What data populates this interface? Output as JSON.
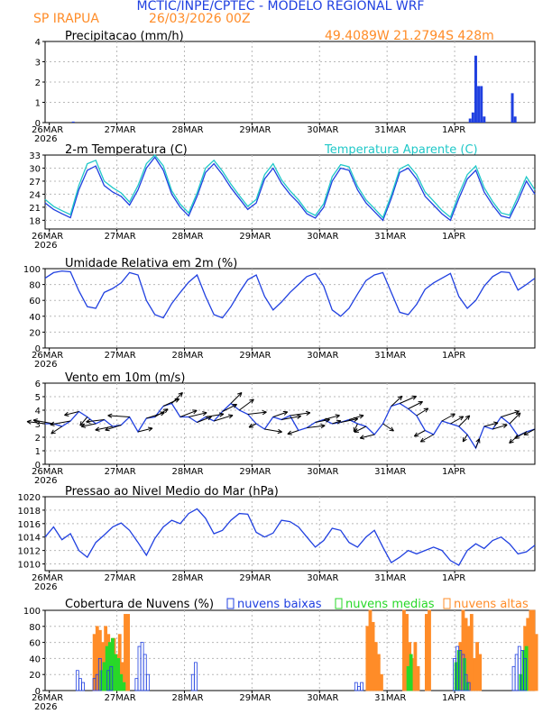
{
  "header": {
    "title": "MCTIC/INPE/CPTEC - MODELO REGIONAL WRF",
    "station": "SP IRAPUA",
    "run": "26/03/2026 00Z",
    "coords": "49.4089W 21.2794S 428m"
  },
  "colors": {
    "blue": "#2040e0",
    "cyan": "#20c8c8",
    "orange": "#ff8c28",
    "green": "#28d828",
    "title_blue": "#2040e0",
    "header_orange": "#ff8c28"
  },
  "day_labels": [
    "26MAR",
    "27MAR",
    "28MAR",
    "29MAR",
    "30MAR",
    "31MAR",
    "1APR"
  ],
  "year_label": "2026",
  "chart_data": [
    {
      "type": "bar",
      "title": "Precipitacao (mm/h)",
      "ylim": [
        0,
        4
      ],
      "yticks": [
        "0",
        "1",
        "2",
        "3",
        "4"
      ],
      "x_hours": [
        10,
        151,
        152,
        153,
        154,
        155,
        156,
        166,
        167
      ],
      "values": [
        0.05,
        0.2,
        0.5,
        3.3,
        1.8,
        1.8,
        0.3,
        1.45,
        0.3
      ]
    },
    {
      "type": "line",
      "title": "2-m Temperatura (C)",
      "legend": "Temperatura Aparente (C)",
      "ylim": [
        16,
        33
      ],
      "yticks": [
        "18",
        "21",
        "24",
        "27",
        "30",
        "33"
      ],
      "series": [
        {
          "name": "Temperatura",
          "color": "#2040e0",
          "x": [
            0,
            3,
            6,
            9,
            12,
            15,
            18,
            21,
            24,
            27,
            30,
            33,
            36,
            39,
            42,
            45,
            48,
            51,
            54,
            57,
            60,
            63,
            66,
            69,
            72,
            75,
            78,
            81,
            84,
            87,
            90,
            93,
            96,
            99,
            102,
            105,
            108,
            111,
            114,
            117,
            120,
            123,
            126,
            129,
            132,
            135,
            138,
            141,
            144,
            147,
            150,
            153,
            156,
            159,
            162,
            165,
            168,
            171,
            174
          ],
          "values": [
            22,
            20.5,
            19.5,
            18.6,
            25,
            29.5,
            30.5,
            26,
            24.5,
            23.5,
            21.5,
            25,
            30,
            32.5,
            29.5,
            24,
            21,
            19,
            23.5,
            29,
            31,
            28.5,
            25.5,
            23,
            20.5,
            22,
            27.5,
            30,
            26.5,
            24,
            22,
            19.5,
            18.5,
            21,
            27,
            30,
            29.5,
            25,
            22,
            20,
            18,
            23,
            29,
            30,
            27.5,
            23.5,
            21.5,
            19.5,
            18,
            23,
            27.5,
            29.5,
            24.5,
            21.5,
            19,
            18.5,
            22.5,
            27,
            24
          ]
        },
        {
          "name": "Temperatura Aparente",
          "color": "#20c8c8",
          "x": [
            0,
            3,
            6,
            9,
            12,
            15,
            18,
            21,
            24,
            27,
            30,
            33,
            36,
            39,
            42,
            45,
            48,
            51,
            54,
            57,
            60,
            63,
            66,
            69,
            72,
            75,
            78,
            81,
            84,
            87,
            90,
            93,
            96,
            99,
            102,
            105,
            108,
            111,
            114,
            117,
            120,
            123,
            126,
            129,
            132,
            135,
            138,
            141,
            144,
            147,
            150,
            153,
            156,
            159,
            162,
            165,
            168,
            171,
            174
          ],
          "values": [
            22.8,
            21.2,
            20.2,
            19.3,
            26,
            31,
            31.8,
            27,
            25.5,
            24.3,
            22.2,
            26,
            31,
            33,
            30.5,
            24.8,
            21.7,
            19.7,
            24.3,
            30,
            31.8,
            29.3,
            26.3,
            23.7,
            21.2,
            22.8,
            28.5,
            31,
            27.3,
            24.8,
            22.7,
            20.1,
            19.1,
            21.8,
            28,
            30.8,
            30.3,
            25.8,
            22.7,
            20.7,
            18.6,
            23.8,
            29.8,
            30.8,
            28.5,
            24.5,
            22.4,
            20.3,
            18.7,
            24,
            28.5,
            30.5,
            25.5,
            22.3,
            19.7,
            19.2,
            23.5,
            28,
            25
          ]
        }
      ]
    },
    {
      "type": "line",
      "title": "Umidade Relativa em 2m (%)",
      "ylim": [
        0,
        100
      ],
      "yticks": [
        "0",
        "20",
        "40",
        "60",
        "80",
        "100"
      ],
      "series": [
        {
          "name": "Umidade",
          "color": "#2040e0",
          "x": [
            0,
            3,
            6,
            9,
            12,
            15,
            18,
            21,
            24,
            27,
            30,
            33,
            36,
            39,
            42,
            45,
            48,
            51,
            54,
            57,
            60,
            63,
            66,
            69,
            72,
            75,
            78,
            81,
            84,
            87,
            90,
            93,
            96,
            99,
            102,
            105,
            108,
            111,
            114,
            117,
            120,
            123,
            126,
            129,
            132,
            135,
            138,
            141,
            144,
            147,
            150,
            153,
            156,
            159,
            162,
            165,
            168,
            171,
            174
          ],
          "values": [
            88,
            95,
            97,
            96,
            72,
            52,
            50,
            70,
            75,
            82,
            95,
            92,
            60,
            42,
            38,
            56,
            70,
            83,
            92,
            65,
            42,
            38,
            52,
            70,
            86,
            92,
            65,
            48,
            58,
            70,
            80,
            90,
            94,
            78,
            48,
            40,
            50,
            68,
            85,
            92,
            95,
            70,
            45,
            42,
            55,
            74,
            82,
            88,
            94,
            65,
            50,
            60,
            78,
            90,
            96,
            95,
            73,
            80,
            88
          ]
        }
      ]
    },
    {
      "type": "line",
      "title": "Vento em 10m (m/s)",
      "ylim": [
        0,
        6
      ],
      "yticks": [
        "0",
        "1",
        "2",
        "3",
        "4",
        "5",
        "6"
      ],
      "series": [
        {
          "name": "Vento",
          "color": "#2040e0",
          "x": [
            0,
            3,
            6,
            9,
            12,
            15,
            18,
            21,
            24,
            27,
            30,
            33,
            36,
            39,
            42,
            45,
            48,
            51,
            54,
            57,
            60,
            63,
            66,
            69,
            72,
            75,
            78,
            81,
            84,
            87,
            90,
            93,
            96,
            99,
            102,
            105,
            108,
            111,
            114,
            117,
            120,
            123,
            126,
            129,
            132,
            135,
            138,
            141,
            144,
            147,
            150,
            153,
            156,
            159,
            162,
            165,
            168,
            171,
            174
          ],
          "values": [
            3,
            3,
            2.8,
            3.2,
            3.9,
            3.5,
            3,
            3.3,
            2.8,
            2.9,
            3.5,
            2.4,
            3.4,
            3.5,
            4.3,
            4.5,
            3.5,
            3.5,
            3.1,
            3.5,
            3.2,
            3.9,
            4.5,
            4.0,
            3.7,
            3.0,
            2.6,
            3.5,
            3.3,
            3.6,
            2.5,
            2.7,
            3.1,
            3.3,
            3.0,
            3.1,
            3.3,
            3.0,
            2.8,
            2.2,
            3.0,
            4.3,
            4.5,
            4.1,
            3.6,
            2.5,
            2.2,
            3.2,
            3.0,
            2.8,
            2.2,
            1.2,
            2.8,
            2.6,
            3.5,
            3.0,
            2.1,
            2.4,
            2.6
          ]
        }
      ],
      "arrows_u": [
        -2.5,
        -2.8,
        -1.5,
        -2.8,
        -2.0,
        -1.0,
        -2.0,
        -2.5,
        -2.4,
        -2.2,
        -3.0,
        2.0,
        2.5,
        1.8,
        2.2,
        1.5,
        2.3,
        2.5,
        2.0,
        2.5,
        2.6,
        2.0,
        1.5,
        2.0,
        2.6,
        -1.0,
        2.4,
        2.0,
        2.7,
        2.8,
        -1.5,
        2.5,
        2.0,
        2.2,
        1.2,
        2.4,
        2.0,
        -0.5,
        -1.6,
        -2.0,
        1.5,
        1.5,
        2.3,
        2.0,
        1.6,
        -1.5,
        -1.8,
        1.8,
        1.8,
        1.5,
        -0.6,
        0.5,
        1.9,
        2.0,
        2.5,
        1.5,
        -1.2,
        -1.6,
        -1.5
      ],
      "arrows_v": [
        0.3,
        0.5,
        -1.0,
        -0.5,
        -0.5,
        -1.2,
        -0.4,
        -0.3,
        -0.5,
        -0.7,
        0.2,
        0.5,
        0.8,
        1.1,
        1.0,
        1.5,
        0.9,
        0.6,
        0.8,
        0.4,
        0.8,
        1.0,
        1.5,
        1.5,
        0.3,
        -0.5,
        -0.4,
        0.7,
        0.5,
        0.4,
        -0.5,
        0.3,
        0.4,
        0.6,
        0.4,
        0.5,
        0.6,
        -1.1,
        -0.8,
        -0.5,
        -1.0,
        1.4,
        1.0,
        1.0,
        1.0,
        -0.8,
        -1.0,
        1.0,
        1.0,
        1.5,
        -1.0,
        1.3,
        0.5,
        0.6,
        0.8,
        1.5,
        -1.0,
        -0.9,
        -0.8
      ]
    },
    {
      "type": "line",
      "title": "Pressao ao Nivel Medio do Mar (hPa)",
      "ylim": [
        1009,
        1020
      ],
      "yticks": [
        "1010",
        "1012",
        "1014",
        "1016",
        "1018",
        "1020"
      ],
      "series": [
        {
          "name": "Pressao",
          "color": "#2040e0",
          "x": [
            0,
            3,
            6,
            9,
            12,
            15,
            18,
            21,
            24,
            27,
            30,
            33,
            36,
            39,
            42,
            45,
            48,
            51,
            54,
            57,
            60,
            63,
            66,
            69,
            72,
            75,
            78,
            81,
            84,
            87,
            90,
            93,
            96,
            99,
            102,
            105,
            108,
            111,
            114,
            117,
            120,
            123,
            126,
            129,
            132,
            135,
            138,
            141,
            144,
            147,
            150,
            153,
            156,
            159,
            162,
            165,
            168,
            171,
            174
          ],
          "values": [
            1014,
            1015.5,
            1013.6,
            1014.5,
            1012.0,
            1011.0,
            1013.2,
            1014.3,
            1015.5,
            1016.1,
            1015.0,
            1013.2,
            1011.3,
            1013.8,
            1015.5,
            1016.5,
            1016.0,
            1017.5,
            1018.2,
            1016.8,
            1014.5,
            1015.0,
            1016.5,
            1017.5,
            1017.4,
            1014.7,
            1014.0,
            1014.6,
            1016.5,
            1016.3,
            1015.5,
            1014.0,
            1012.5,
            1013.5,
            1015.3,
            1015.0,
            1013.2,
            1012.5,
            1014.0,
            1015.0,
            1012.5,
            1010.2,
            1011.0,
            1012.0,
            1011.5,
            1012.0,
            1012.5,
            1012.0,
            1010.5,
            1009.8,
            1012.0,
            1013.0,
            1012.3,
            1013.5,
            1014.0,
            1013.0,
            1011.5,
            1011.8,
            1012.8
          ]
        }
      ]
    },
    {
      "type": "bar",
      "title": "Cobertura de Nuvens (%)",
      "ylim": [
        0,
        100
      ],
      "yticks": [
        "0",
        "20",
        "40",
        "60",
        "80",
        "100"
      ],
      "legend": [
        "nuvens baixas",
        "nuvens medias",
        "nuvens altas"
      ],
      "series": [
        {
          "name": "nuvens baixas",
          "color": "#2040e0",
          "x": [
            12,
            13,
            14,
            18,
            19,
            20,
            23,
            24,
            33,
            34,
            35,
            36,
            37,
            53,
            54,
            111,
            112,
            113,
            146,
            147,
            148,
            149,
            150,
            151,
            167,
            168,
            169,
            170,
            171
          ],
          "values": [
            25,
            15,
            10,
            15,
            20,
            40,
            25,
            30,
            15,
            55,
            60,
            45,
            20,
            20,
            35,
            10,
            5,
            10,
            40,
            55,
            50,
            45,
            20,
            10,
            30,
            45,
            55,
            50,
            40
          ]
        },
        {
          "name": "nuvens medias",
          "color": "#28d828",
          "x": [
            20,
            21,
            22,
            23,
            24,
            25,
            26,
            27,
            28,
            129,
            130,
            146,
            147,
            149,
            150,
            169,
            170,
            171
          ],
          "values": [
            25,
            35,
            55,
            60,
            65,
            45,
            40,
            20,
            10,
            30,
            45,
            35,
            50,
            40,
            10,
            20,
            50,
            55
          ]
        },
        {
          "name": "nuvens altas",
          "color": "#ff8c28",
          "x": [
            17,
            18,
            19,
            20,
            21,
            22,
            24,
            25,
            26,
            27,
            28,
            29,
            114,
            115,
            116,
            117,
            118,
            119,
            127,
            128,
            129,
            130,
            131,
            132,
            135,
            136,
            147,
            148,
            149,
            150,
            151,
            152,
            153,
            154,
            170,
            171,
            172,
            173,
            174
          ],
          "values": [
            70,
            80,
            75,
            60,
            80,
            70,
            65,
            45,
            70,
            35,
            95,
            95,
            80,
            100,
            85,
            60,
            45,
            20,
            100,
            95,
            60,
            40,
            60,
            30,
            95,
            100,
            60,
            100,
            90,
            80,
            95,
            40,
            60,
            45,
            80,
            90,
            100,
            100,
            70
          ]
        }
      ]
    }
  ]
}
